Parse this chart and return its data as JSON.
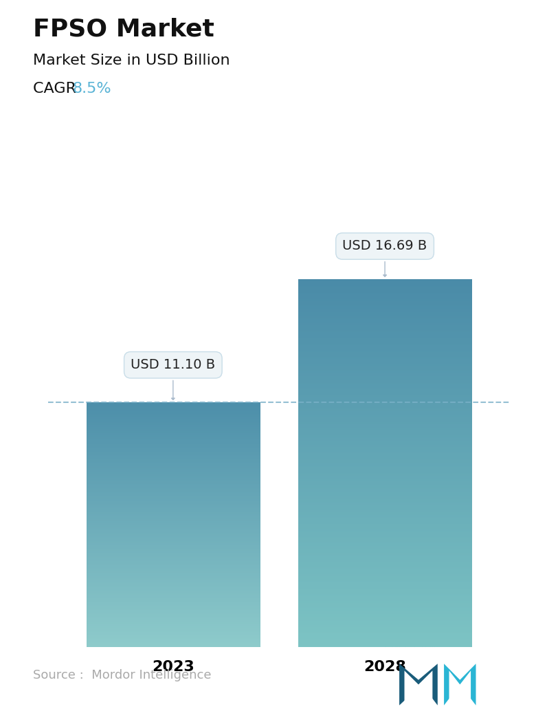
{
  "title": "FPSO Market",
  "subtitle": "Market Size in USD Billion",
  "cagr_label": "CAGR ",
  "cagr_value": "8.5%",
  "cagr_color": "#5ab4d6",
  "categories": [
    "2023",
    "2028"
  ],
  "values": [
    11.1,
    16.69
  ],
  "value_labels": [
    "USD 11.10 B",
    "USD 16.69 B"
  ],
  "bar1_top_color": "#4d8faa",
  "bar1_bottom_color": "#8ecbcb",
  "bar2_top_color": "#4a8ba8",
  "bar2_bottom_color": "#7dc4c4",
  "dashed_line_color": "#7ab0c8",
  "annotation_bg": "#eef4f7",
  "annotation_edge": "#c8dde8",
  "source_text": "Source :  Mordor Intelligence",
  "source_color": "#aaaaaa",
  "background_color": "#ffffff",
  "title_fontsize": 26,
  "subtitle_fontsize": 16,
  "cagr_fontsize": 16,
  "category_fontsize": 16,
  "value_label_fontsize": 14,
  "source_fontsize": 13,
  "max_val": 20.0,
  "bar_positions": [
    0.28,
    0.72
  ],
  "bar_width": 0.36
}
